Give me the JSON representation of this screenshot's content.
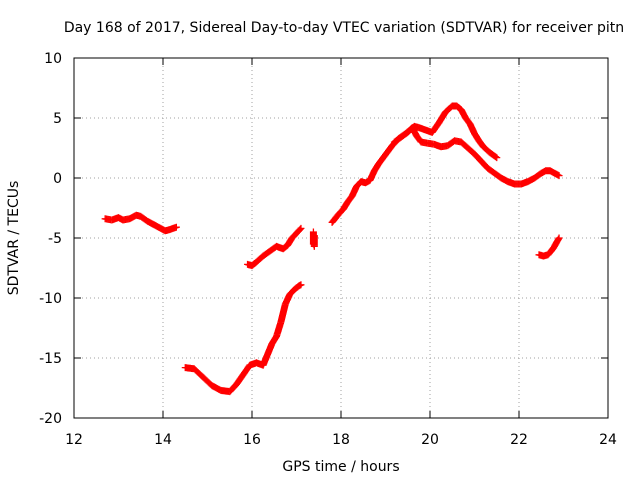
{
  "chart_data": {
    "type": "scatter",
    "title": "Day 168 of 2017, Sidereal Day-to-day VTEC variation (SDTVAR) for receiver pitn",
    "xlabel": "GPS time / hours",
    "ylabel": "SDTVAR / TECUs",
    "xlim": [
      12,
      24
    ],
    "ylim": [
      -20,
      10
    ],
    "xticks": [
      12,
      14,
      16,
      18,
      20,
      22,
      24
    ],
    "yticks": [
      -20,
      -15,
      -10,
      -5,
      0,
      5,
      10
    ],
    "grid": true,
    "marker": "plus",
    "color": "#ff0000",
    "series": [
      {
        "name": "seg1",
        "x": [
          12.7,
          12.85,
          13.0,
          13.1,
          13.25,
          13.4,
          13.5,
          13.65,
          13.8,
          13.95,
          14.05,
          14.15,
          14.3
        ],
        "y": [
          -3.4,
          -3.5,
          -3.3,
          -3.5,
          -3.4,
          -3.1,
          -3.2,
          -3.6,
          -3.9,
          -4.2,
          -4.4,
          -4.3,
          -4.1
        ]
      },
      {
        "name": "seg2",
        "x": [
          14.5,
          14.7,
          14.9,
          15.1,
          15.3,
          15.5,
          15.65,
          15.8,
          15.95,
          16.1,
          16.25,
          16.35,
          16.45,
          16.55,
          16.65,
          16.75,
          16.85,
          16.95,
          17.05,
          17.1
        ],
        "y": [
          -15.8,
          -15.9,
          -16.6,
          -17.3,
          -17.7,
          -17.8,
          -17.2,
          -16.4,
          -15.6,
          -15.4,
          -15.6,
          -14.7,
          -13.8,
          -13.2,
          -12.0,
          -10.5,
          -9.7,
          -9.3,
          -9.0,
          -8.9
        ]
      },
      {
        "name": "seg3",
        "x": [
          15.9,
          16.0,
          16.1,
          16.25,
          16.4,
          16.55,
          16.7,
          16.8,
          16.9,
          17.0,
          17.1
        ],
        "y": [
          -7.2,
          -7.3,
          -7.0,
          -6.5,
          -6.1,
          -5.7,
          -5.9,
          -5.6,
          -5.0,
          -4.6,
          -4.2
        ]
      },
      {
        "name": "seg4",
        "x": [
          17.38,
          17.38,
          17.38,
          17.4,
          17.4,
          17.4
        ],
        "y": [
          -4.5,
          -5.0,
          -5.5,
          -4.8,
          -5.2,
          -5.7
        ]
      },
      {
        "name": "seg5",
        "x": [
          17.8,
          17.95,
          18.05,
          18.15,
          18.25,
          18.35,
          18.45,
          18.55,
          18.65,
          18.75,
          18.85,
          18.95,
          19.05,
          19.15,
          19.3,
          19.45,
          19.55,
          19.65,
          19.75,
          19.9,
          20.05,
          20.2,
          20.35,
          20.5,
          20.6,
          20.7,
          20.8,
          20.9,
          21.0,
          21.1,
          21.2,
          21.35,
          21.5
        ],
        "y": [
          -3.7,
          -3.0,
          -2.6,
          -2.0,
          -1.5,
          -0.7,
          -0.3,
          -0.4,
          -0.2,
          0.6,
          1.2,
          1.7,
          2.2,
          2.7,
          3.3,
          3.7,
          4.0,
          4.3,
          4.2,
          4.0,
          3.8,
          4.6,
          5.5,
          6.0,
          6.0,
          5.7,
          5.0,
          4.5,
          3.7,
          3.1,
          2.6,
          2.1,
          1.7
        ]
      },
      {
        "name": "seg6",
        "x": [
          19.2,
          19.35,
          19.5,
          19.6,
          19.7,
          19.8,
          19.95,
          20.1,
          20.25,
          20.4,
          20.55,
          20.7,
          20.85,
          21.0,
          21.15,
          21.3,
          21.45,
          21.6,
          21.75,
          21.9,
          22.05,
          22.2,
          22.35,
          22.5,
          22.6,
          22.7,
          22.8,
          22.9
        ],
        "y": [
          3.0,
          3.4,
          3.8,
          4.2,
          3.5,
          3.0,
          2.9,
          2.8,
          2.6,
          2.7,
          3.1,
          3.0,
          2.5,
          2.0,
          1.4,
          0.8,
          0.4,
          0.0,
          -0.3,
          -0.5,
          -0.5,
          -0.3,
          0.0,
          0.4,
          0.6,
          0.6,
          0.4,
          0.2
        ]
      },
      {
        "name": "seg7",
        "x": [
          22.45,
          22.55,
          22.65,
          22.72,
          22.78,
          22.84,
          22.9
        ],
        "y": [
          -6.4,
          -6.5,
          -6.4,
          -6.1,
          -5.8,
          -5.4,
          -5.0
        ]
      }
    ]
  }
}
